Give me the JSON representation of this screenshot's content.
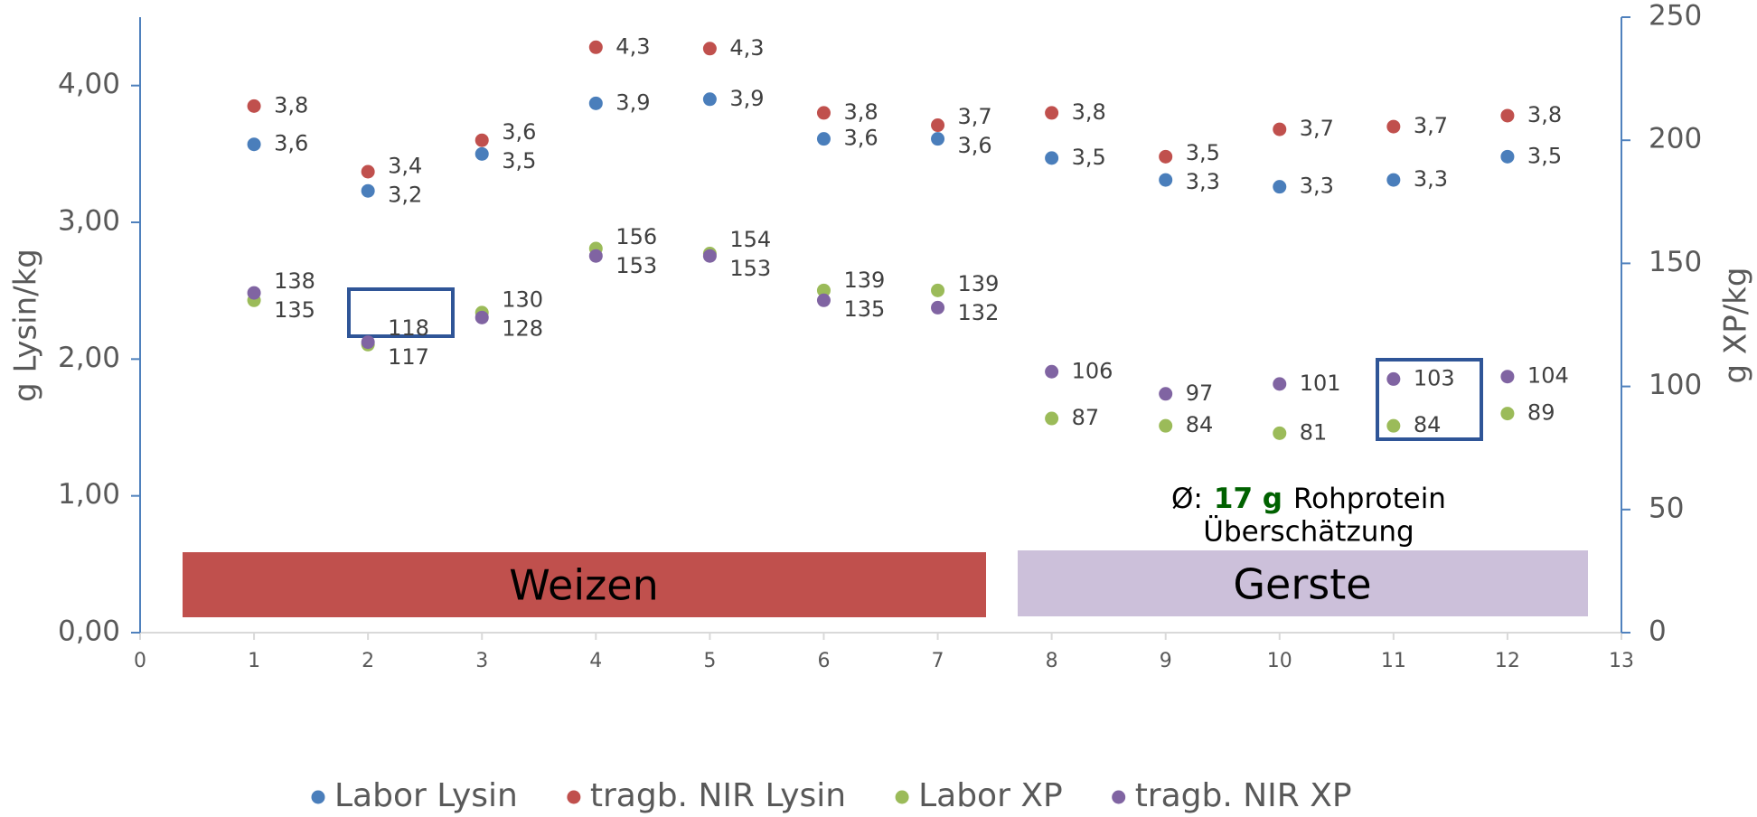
{
  "chart_data": {
    "type": "scatter",
    "x": [
      1,
      2,
      3,
      4,
      5,
      6,
      7,
      8,
      9,
      10,
      11,
      12
    ],
    "xlim": [
      0,
      13
    ],
    "xticks": [
      0,
      1,
      2,
      3,
      4,
      5,
      6,
      7,
      8,
      9,
      10,
      11,
      12,
      13
    ],
    "ylim": [
      0,
      4.5
    ],
    "yticks": [
      {
        "value": 0,
        "label": "0,00"
      },
      {
        "value": 1,
        "label": "1,00"
      },
      {
        "value": 2,
        "label": "2,00"
      },
      {
        "value": 3,
        "label": "3,00"
      },
      {
        "value": 4,
        "label": "4,00"
      }
    ],
    "y2lim": [
      0,
      250
    ],
    "y2ticks": [
      0,
      50,
      100,
      150,
      200,
      250
    ],
    "ylabel": "g Lysin/kg",
    "y2label": "g XP/kg",
    "series": [
      {
        "name": "Labor Lysin",
        "color": "#4a7ebb",
        "values": [
          3.57,
          3.23,
          3.5,
          3.87,
          3.9,
          3.61,
          3.61,
          3.47,
          3.31,
          3.26,
          3.31,
          3.48
        ],
        "value_labels": [
          "3,6",
          "3,2",
          "3,5",
          "3,9",
          "3,9",
          "3,6",
          "3,6",
          "3,5",
          "3,3",
          "3,3",
          "3,3",
          "3,5"
        ]
      },
      {
        "name": "tragb. NIR Lysin",
        "color": "#c0504d",
        "values": [
          3.85,
          3.37,
          3.6,
          4.28,
          4.27,
          3.8,
          3.71,
          3.8,
          3.48,
          3.68,
          3.7,
          3.78
        ],
        "value_labels": [
          "3,8",
          "3,4",
          "3,6",
          "4,3",
          "4,3",
          "3,8",
          "3,7",
          "3,8",
          "3,5",
          "3,7",
          "3,7",
          "3,8"
        ]
      },
      {
        "name": "Labor XP",
        "color": "#9bbb59",
        "axis": "y2",
        "values": [
          135,
          117,
          130,
          156,
          154,
          139,
          139,
          87,
          84,
          81,
          84,
          89
        ]
      },
      {
        "name": "tragb. NIR XP",
        "color": "#8064a2",
        "axis": "y2",
        "values": [
          138,
          118,
          128,
          153,
          153,
          135,
          132,
          106,
          97,
          101,
          103,
          104
        ]
      }
    ],
    "annotations": [
      {
        "text": "Weizen",
        "color": "#c0504d"
      },
      {
        "text": "Gerste",
        "color": "#ccc0da"
      }
    ],
    "note": {
      "prefix": "Ø:",
      "highlight": "17 g",
      "suffix": "Rohprotein",
      "line2": "Überschätzung"
    }
  }
}
